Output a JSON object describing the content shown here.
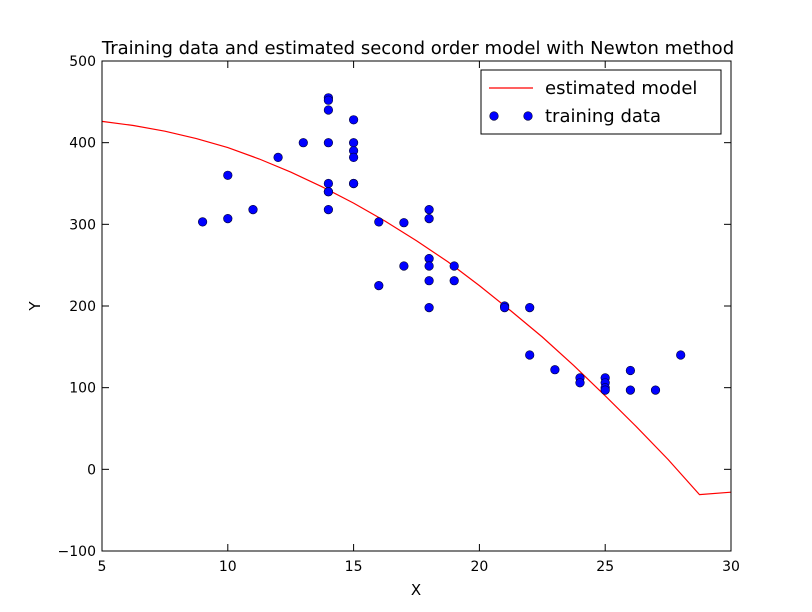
{
  "chart_data": {
    "type": "scatter",
    "title": "Training data and estimated second order model with Newton method",
    "xlabel": "X",
    "ylabel": "Y",
    "xlim": [
      5,
      30
    ],
    "ylim": [
      -100,
      500
    ],
    "xticks": [
      5,
      10,
      15,
      20,
      25,
      30
    ],
    "yticks": [
      -100,
      0,
      100,
      200,
      300,
      400,
      500
    ],
    "xtick_labels": [
      "5",
      "10",
      "15",
      "20",
      "25",
      "30"
    ],
    "ytick_labels": [
      "−100",
      "0",
      "100",
      "200",
      "300",
      "400",
      "500"
    ],
    "grid": false,
    "legend_position": "top-right",
    "series": [
      {
        "name": "estimated model",
        "kind": "line",
        "color": "#ff0000",
        "x": [
          5,
          6.25,
          7.5,
          8.75,
          10,
          11.25,
          12.5,
          13.75,
          15,
          16.25,
          17.5,
          18.75,
          20,
          21.25,
          22.5,
          23.75,
          25,
          26.25,
          27.5,
          28.75,
          30
        ],
        "y": [
          426,
          421,
          414,
          405,
          394,
          380,
          364,
          346,
          326,
          304,
          280,
          254,
          225,
          194,
          162,
          127,
          90,
          52,
          12,
          -31,
          -28
        ]
      },
      {
        "name": "training data",
        "kind": "scatter",
        "color": "#0000ff",
        "x": [
          9,
          10,
          10,
          11,
          12,
          13,
          14,
          14,
          14,
          14,
          14,
          14,
          14,
          14,
          15,
          15,
          15,
          15,
          15,
          15,
          16,
          16,
          17,
          17,
          18,
          18,
          18,
          18,
          18,
          18,
          19,
          19,
          21,
          21,
          22,
          22,
          23,
          24,
          24,
          25,
          25,
          25,
          25,
          26,
          26,
          27,
          28
        ],
        "y": [
          303,
          307,
          360,
          318,
          382,
          400,
          455,
          452,
          440,
          400,
          350,
          340,
          340,
          318,
          428,
          400,
          390,
          382,
          350,
          350,
          303,
          225,
          302,
          249,
          318,
          307,
          258,
          249,
          231,
          198,
          249,
          231,
          200,
          198,
          198,
          140,
          122,
          112,
          106,
          112,
          106,
          100,
          97,
          121,
          97,
          97,
          140
        ]
      }
    ]
  }
}
